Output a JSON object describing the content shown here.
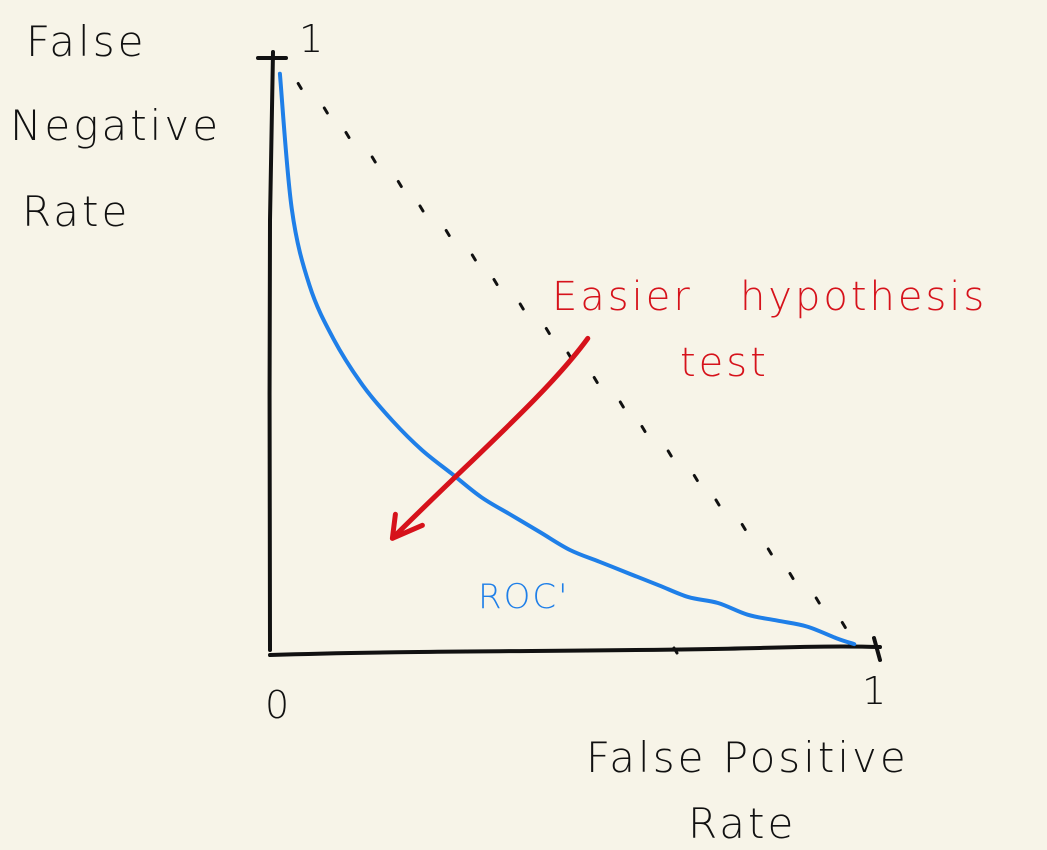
{
  "chart_data": {
    "type": "line",
    "xlabel": "False Positive Rate",
    "ylabel": "False Negative Rate",
    "x_ticks": [
      "0",
      "1"
    ],
    "y_ticks": [
      "1"
    ],
    "xlim": [
      0,
      1
    ],
    "ylim": [
      0,
      1
    ],
    "grid": false,
    "series": [
      {
        "name": "ROC'",
        "color": "#1f7fe8",
        "style": "solid",
        "x": [
          0.01,
          0.03,
          0.06,
          0.1,
          0.15,
          0.2,
          0.25,
          0.3,
          0.35,
          0.4,
          0.45,
          0.5,
          0.55,
          0.6,
          0.65,
          0.7,
          0.75,
          0.8,
          0.85,
          0.9,
          0.95,
          0.98
        ],
        "y": [
          0.98,
          0.75,
          0.62,
          0.53,
          0.45,
          0.39,
          0.34,
          0.3,
          0.26,
          0.23,
          0.2,
          0.17,
          0.15,
          0.13,
          0.11,
          0.09,
          0.08,
          0.06,
          0.05,
          0.04,
          0.02,
          0.01
        ]
      },
      {
        "name": "",
        "color": "#111111",
        "style": "dotted",
        "x": [
          0,
          0.1,
          0.2,
          0.3,
          0.4,
          0.5,
          0.6,
          0.7,
          0.8,
          0.9,
          1
        ],
        "y": [
          1,
          0.9,
          0.8,
          0.7,
          0.6,
          0.5,
          0.4,
          0.3,
          0.2,
          0.1,
          0
        ]
      }
    ],
    "annotations": [
      {
        "text": "Easier hypothesis test",
        "lines": [
          "Easier   hypothesis",
          "test"
        ],
        "color": "#d6121b",
        "arrow_from": [
          0.53,
          0.53
        ],
        "arrow_to": [
          0.2,
          0.19
        ]
      }
    ]
  },
  "labels": {
    "y_axis_lines": [
      "False",
      "Negative",
      "Rate"
    ],
    "x_axis_lines": [
      "False  Positive",
      "Rate"
    ],
    "series_label": "ROC'"
  },
  "colors": {
    "background": "#f7f4e8",
    "axis": "#111111",
    "curve": "#1f7fe8",
    "annotation": "#d6121b"
  }
}
